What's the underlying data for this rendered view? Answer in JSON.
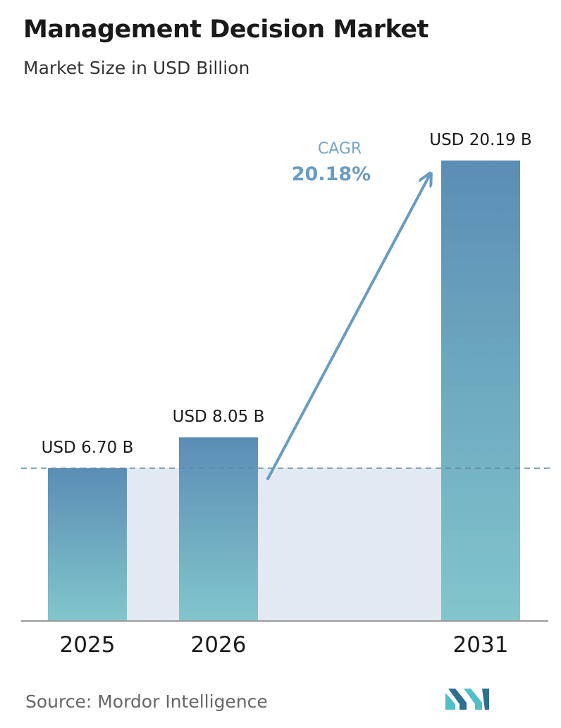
{
  "header": {
    "title": "Management Decision Market",
    "subtitle": "Market Size in USD Billion"
  },
  "chart_data": {
    "type": "bar",
    "categories": [
      "2025",
      "2026",
      "2031"
    ],
    "values": [
      6.7,
      8.05,
      20.19
    ],
    "value_labels": [
      "USD 6.70 B",
      "USD 8.05 B",
      "USD 20.19 B"
    ],
    "ylim": [
      0,
      20.19
    ],
    "xlabel": "",
    "ylabel": "",
    "grid": false,
    "legend": "none",
    "annotation": {
      "label": "CAGR",
      "value": "20.18%"
    }
  },
  "footer": {
    "source": "Source:  Mordor Intelligence"
  },
  "colors": {
    "bar_top": "#5b8db5",
    "bar_bottom": "#82c6cc",
    "band": "#e2e9f2",
    "arrow": "#6a9bc0",
    "dashed_line": "#5c8aa8",
    "baseline": "#9a9a9a",
    "logo_dark": "#2c6f8f",
    "logo_light": "#4fc0c8"
  }
}
